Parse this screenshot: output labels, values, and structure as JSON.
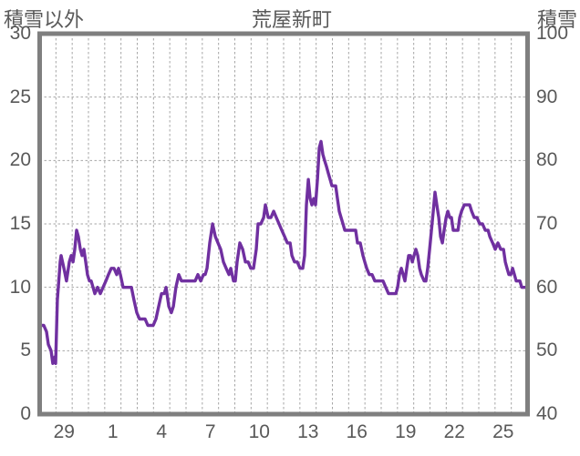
{
  "header": {
    "left_axis_title": "積雪以外",
    "chart_title": "荒屋新町",
    "right_axis_title": "積雪"
  },
  "colors": {
    "line": "#7030A0",
    "border": "#7f7f7f",
    "gridline": "#a6a6a6",
    "text": "#595959",
    "background": "#ffffff"
  },
  "chart_data": {
    "type": "line",
    "title": "荒屋新町",
    "grid": "dashed, vertical line each day, horizontal every 5 (left axis)",
    "legend_position": "none",
    "y_axis_left": {
      "title": "積雪以外",
      "min": 0,
      "max": 30,
      "ticks": [
        30,
        25,
        20,
        15,
        10,
        5,
        0
      ],
      "gridlines": [
        25,
        20,
        15,
        10,
        5
      ]
    },
    "y_axis_right": {
      "title": "積雪",
      "min": 40,
      "max": 100,
      "ticks": [
        100,
        90,
        80,
        70,
        60,
        50,
        40
      ]
    },
    "x_axis": {
      "days_total": 30,
      "tick_labels": [
        "29",
        "1",
        "4",
        "7",
        "10",
        "13",
        "16",
        "19",
        "22",
        "25"
      ],
      "tick_day_indices": [
        1,
        4,
        7,
        10,
        13,
        16,
        19,
        22,
        25,
        28
      ]
    },
    "series": [
      {
        "name": "積雪",
        "axis": "right",
        "color": "#7030A0",
        "points_format": "[days_from_chart_start, snow_depth_on_right_axis]",
        "values": [
          [
            0.08,
            54
          ],
          [
            0.25,
            54
          ],
          [
            0.42,
            53
          ],
          [
            0.53,
            51
          ],
          [
            0.7,
            50
          ],
          [
            0.81,
            48
          ],
          [
            0.93,
            49
          ],
          [
            0.98,
            48
          ],
          [
            1.09,
            58
          ],
          [
            1.26,
            64
          ],
          [
            1.32,
            65
          ],
          [
            1.49,
            63
          ],
          [
            1.65,
            61
          ],
          [
            1.82,
            64
          ],
          [
            1.94,
            65
          ],
          [
            2.05,
            64
          ],
          [
            2.16,
            66
          ],
          [
            2.27,
            69
          ],
          [
            2.38,
            68
          ],
          [
            2.5,
            66
          ],
          [
            2.61,
            65
          ],
          [
            2.72,
            66
          ],
          [
            2.83,
            64
          ],
          [
            2.94,
            62
          ],
          [
            3.06,
            61
          ],
          [
            3.17,
            61
          ],
          [
            3.28,
            60
          ],
          [
            3.39,
            59
          ],
          [
            3.56,
            60
          ],
          [
            3.73,
            59
          ],
          [
            3.9,
            60
          ],
          [
            4.07,
            61
          ],
          [
            4.23,
            62
          ],
          [
            4.4,
            63
          ],
          [
            4.57,
            63
          ],
          [
            4.74,
            62
          ],
          [
            4.85,
            63
          ],
          [
            4.96,
            62
          ],
          [
            5.13,
            60
          ],
          [
            5.3,
            60
          ],
          [
            5.47,
            60
          ],
          [
            5.64,
            60
          ],
          [
            5.8,
            58
          ],
          [
            5.97,
            56
          ],
          [
            6.14,
            55
          ],
          [
            6.31,
            55
          ],
          [
            6.48,
            55
          ],
          [
            6.65,
            54
          ],
          [
            6.81,
            54
          ],
          [
            6.98,
            54
          ],
          [
            7.15,
            55
          ],
          [
            7.32,
            57
          ],
          [
            7.49,
            59
          ],
          [
            7.66,
            59
          ],
          [
            7.77,
            60
          ],
          [
            7.94,
            57
          ],
          [
            8.1,
            56
          ],
          [
            8.22,
            57
          ],
          [
            8.38,
            60
          ],
          [
            8.55,
            62
          ],
          [
            8.72,
            61
          ],
          [
            8.89,
            61
          ],
          [
            9.06,
            61
          ],
          [
            9.23,
            61
          ],
          [
            9.39,
            61
          ],
          [
            9.56,
            61
          ],
          [
            9.73,
            62
          ],
          [
            9.9,
            61
          ],
          [
            10.07,
            62
          ],
          [
            10.18,
            62
          ],
          [
            10.29,
            63
          ],
          [
            10.46,
            67
          ],
          [
            10.63,
            70
          ],
          [
            10.8,
            68
          ],
          [
            10.96,
            67
          ],
          [
            11.13,
            66
          ],
          [
            11.3,
            64
          ],
          [
            11.47,
            63
          ],
          [
            11.64,
            62
          ],
          [
            11.75,
            63
          ],
          [
            11.92,
            61
          ],
          [
            12.03,
            61
          ],
          [
            12.14,
            64
          ],
          [
            12.31,
            67
          ],
          [
            12.48,
            66
          ],
          [
            12.65,
            64
          ],
          [
            12.82,
            64
          ],
          [
            12.98,
            63
          ],
          [
            13.15,
            63
          ],
          [
            13.32,
            66
          ],
          [
            13.43,
            70
          ],
          [
            13.6,
            70
          ],
          [
            13.77,
            71
          ],
          [
            13.88,
            73
          ],
          [
            14.05,
            71
          ],
          [
            14.22,
            71
          ],
          [
            14.39,
            72
          ],
          [
            14.55,
            71
          ],
          [
            14.72,
            70
          ],
          [
            14.89,
            69
          ],
          [
            15.06,
            68
          ],
          [
            15.23,
            67
          ],
          [
            15.4,
            67
          ],
          [
            15.51,
            65
          ],
          [
            15.67,
            64
          ],
          [
            15.84,
            64
          ],
          [
            16.01,
            63
          ],
          [
            16.18,
            63
          ],
          [
            16.29,
            65
          ],
          [
            16.4,
            73
          ],
          [
            16.52,
            77
          ],
          [
            16.63,
            74
          ],
          [
            16.74,
            73
          ],
          [
            16.85,
            74
          ],
          [
            16.96,
            73
          ],
          [
            17.08,
            77
          ],
          [
            17.19,
            82
          ],
          [
            17.3,
            83
          ],
          [
            17.41,
            81
          ],
          [
            17.52,
            80
          ],
          [
            17.64,
            79
          ],
          [
            17.75,
            78
          ],
          [
            17.86,
            77
          ],
          [
            17.97,
            76
          ],
          [
            18.09,
            76
          ],
          [
            18.2,
            76
          ],
          [
            18.31,
            74
          ],
          [
            18.42,
            72
          ],
          [
            18.53,
            71
          ],
          [
            18.65,
            70
          ],
          [
            18.76,
            69
          ],
          [
            18.93,
            69
          ],
          [
            19.1,
            69
          ],
          [
            19.26,
            69
          ],
          [
            19.43,
            69
          ],
          [
            19.54,
            67
          ],
          [
            19.71,
            67
          ],
          [
            19.88,
            65
          ],
          [
            19.99,
            64
          ],
          [
            20.11,
            63
          ],
          [
            20.27,
            62
          ],
          [
            20.44,
            62
          ],
          [
            20.61,
            61
          ],
          [
            20.78,
            61
          ],
          [
            20.95,
            61
          ],
          [
            21.11,
            61
          ],
          [
            21.28,
            60
          ],
          [
            21.45,
            59
          ],
          [
            21.62,
            59
          ],
          [
            21.79,
            59
          ],
          [
            21.9,
            59
          ],
          [
            22.01,
            60
          ],
          [
            22.12,
            62
          ],
          [
            22.24,
            63
          ],
          [
            22.35,
            62
          ],
          [
            22.46,
            61
          ],
          [
            22.57,
            63
          ],
          [
            22.69,
            65
          ],
          [
            22.8,
            65
          ],
          [
            22.91,
            64
          ],
          [
            23.02,
            65
          ],
          [
            23.13,
            66
          ],
          [
            23.25,
            65
          ],
          [
            23.36,
            63
          ],
          [
            23.47,
            62
          ],
          [
            23.64,
            61
          ],
          [
            23.75,
            61
          ],
          [
            23.86,
            63
          ],
          [
            23.98,
            66
          ],
          [
            24.09,
            69
          ],
          [
            24.2,
            72
          ],
          [
            24.31,
            75
          ],
          [
            24.42,
            73
          ],
          [
            24.54,
            71
          ],
          [
            24.65,
            68
          ],
          [
            24.76,
            67
          ],
          [
            24.87,
            69
          ],
          [
            24.99,
            71
          ],
          [
            25.1,
            72
          ],
          [
            25.21,
            71
          ],
          [
            25.32,
            71
          ],
          [
            25.43,
            69
          ],
          [
            25.6,
            69
          ],
          [
            25.72,
            69
          ],
          [
            25.83,
            71
          ],
          [
            25.94,
            72
          ],
          [
            26.11,
            73
          ],
          [
            26.27,
            73
          ],
          [
            26.44,
            73
          ],
          [
            26.56,
            72
          ],
          [
            26.72,
            71
          ],
          [
            26.89,
            71
          ],
          [
            27.06,
            70
          ],
          [
            27.23,
            70
          ],
          [
            27.4,
            69
          ],
          [
            27.57,
            69
          ],
          [
            27.68,
            68
          ],
          [
            27.85,
            67
          ],
          [
            28.01,
            66
          ],
          [
            28.18,
            67
          ],
          [
            28.35,
            66
          ],
          [
            28.52,
            66
          ],
          [
            28.63,
            64
          ],
          [
            28.74,
            63
          ],
          [
            28.85,
            62
          ],
          [
            28.97,
            62
          ],
          [
            29.08,
            63
          ],
          [
            29.19,
            62
          ],
          [
            29.3,
            61
          ],
          [
            29.41,
            61
          ],
          [
            29.53,
            61
          ],
          [
            29.64,
            60
          ],
          [
            29.75,
            60
          ],
          [
            29.86,
            60
          ],
          [
            29.97,
            60
          ]
        ]
      }
    ]
  }
}
